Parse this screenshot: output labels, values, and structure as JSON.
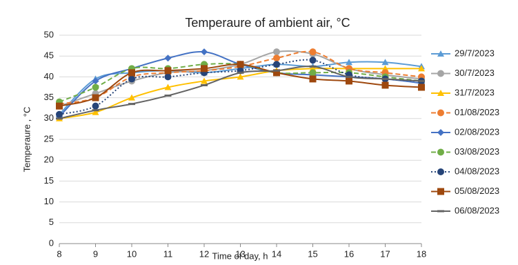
{
  "chart_data": {
    "type": "line",
    "title": "Temperaure of ambient air, °C",
    "x_label": "Time of day, h",
    "y_label": "Temperaure , °C",
    "x": [
      8,
      9,
      10,
      11,
      12,
      13,
      14,
      15,
      16,
      17,
      18
    ],
    "xlim": [
      8,
      18
    ],
    "xticks": [
      8,
      9,
      10,
      11,
      12,
      13,
      14,
      15,
      16,
      17,
      18
    ],
    "ylim": [
      0,
      50
    ],
    "yticks": [
      0,
      5,
      10,
      15,
      20,
      25,
      30,
      35,
      40,
      45,
      50
    ],
    "grid": true,
    "smooth": true,
    "legend": "right",
    "series": [
      {
        "name": "29/7/2023",
        "color": "#5b9bd5",
        "marker": "triangle",
        "dash": "solid",
        "values": [
          31,
          39.5,
          41,
          41.5,
          41,
          42,
          43,
          42.5,
          43.5,
          43.5,
          42.5
        ]
      },
      {
        "name": "30/7/2023",
        "color": "#a5a5a5",
        "marker": "circle",
        "dash": "solid",
        "values": [
          33,
          36,
          39,
          41,
          41.5,
          43,
          46,
          45.5,
          42,
          40.5,
          39.5
        ]
      },
      {
        "name": "31/7/2023",
        "color": "#ffc000",
        "marker": "triangle",
        "dash": "solid",
        "values": [
          30,
          31.5,
          35,
          37.5,
          39,
          40,
          41.5,
          42,
          42,
          42,
          42
        ]
      },
      {
        "name": "01/08/2023",
        "color": "#ed7d31",
        "marker": "circle",
        "dash": "dashed",
        "values": [
          33.5,
          35,
          40,
          41,
          41.5,
          42.5,
          44.5,
          46,
          42,
          41,
          40
        ]
      },
      {
        "name": "02/08/2023",
        "color": "#4472c4",
        "marker": "diamond",
        "dash": "solid",
        "values": [
          30.5,
          39,
          42,
          44.5,
          46,
          43,
          41,
          40.5,
          40,
          39.5,
          38.5
        ]
      },
      {
        "name": "03/08/2023",
        "color": "#70ad47",
        "marker": "circle",
        "dash": "dashed",
        "values": [
          34,
          37.5,
          42,
          42,
          43,
          43,
          41,
          41,
          41,
          40,
          39
        ]
      },
      {
        "name": "04/08/2023",
        "color": "#264478",
        "marker": "circle",
        "dash": "dotted",
        "values": [
          31,
          33,
          39.5,
          40,
          41,
          41.5,
          43,
          44,
          40.5,
          39.5,
          39
        ]
      },
      {
        "name": "05/08/2023",
        "color": "#9e480e",
        "marker": "square",
        "dash": "solid",
        "values": [
          33,
          35,
          41,
          41.5,
          42,
          43,
          41,
          39.5,
          39,
          38,
          37.5
        ]
      },
      {
        "name": "06/08/2023",
        "color": "#636363",
        "marker": "dash",
        "dash": "solid",
        "values": [
          30,
          32,
          33.5,
          35.5,
          38,
          41,
          41.5,
          42.5,
          40,
          39.5,
          39
        ]
      }
    ]
  }
}
